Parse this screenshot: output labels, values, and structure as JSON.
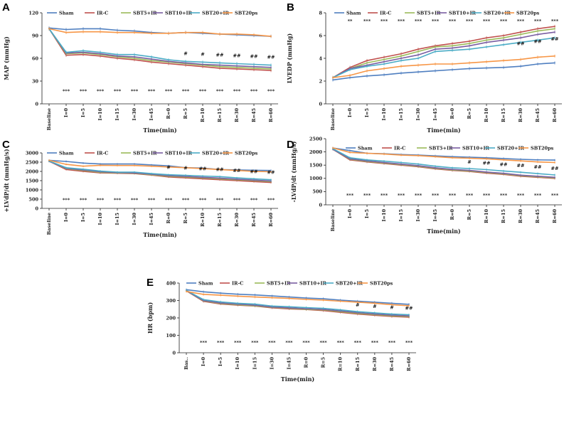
{
  "legend": [
    "Sham",
    "IR-C",
    "SBT5+IR",
    "SBT10+IR",
    "SBT20+IR",
    "SBT20ps"
  ],
  "colors": [
    "#4f7fc0",
    "#c0504d",
    "#9bbb59",
    "#7a5ea2",
    "#4bacc6",
    "#f79646"
  ],
  "xlabel": "Time(min)",
  "categories": [
    "Baseline",
    "I=0",
    "I=5",
    "I=10",
    "I=15",
    "I=30",
    "I=45",
    "R=0",
    "R=5",
    "R=10",
    "R=15",
    "R=30",
    "R=45",
    "R=60"
  ],
  "categories_E": [
    "Bas..",
    "I=0",
    "I=5",
    "I=10",
    "I=15",
    "I=30",
    "I=45",
    "R=0",
    "R=5",
    "R=10",
    "R=15",
    "R=30",
    "R=45",
    "R=60"
  ],
  "chart_data": [
    {
      "panel": "A",
      "type": "line",
      "ylabel": "MAP (mmHg)",
      "ylim": [
        0,
        120
      ],
      "yticks": [
        0,
        30,
        60,
        90,
        120
      ],
      "series": [
        {
          "name": "Sham",
          "values": [
            100,
            98,
            99,
            99,
            97,
            96,
            94,
            93,
            94,
            93,
            92,
            91,
            90,
            89
          ]
        },
        {
          "name": "IR-C",
          "values": [
            99,
            64,
            65,
            63,
            60,
            58,
            55,
            53,
            51,
            49,
            47,
            46,
            45,
            44
          ]
        },
        {
          "name": "SBT5+IR",
          "values": [
            99,
            66,
            67,
            65,
            62,
            60,
            57,
            55,
            53,
            51,
            49,
            48,
            47,
            46
          ]
        },
        {
          "name": "SBT10+IR",
          "values": [
            99,
            67,
            68,
            66,
            63,
            62,
            59,
            56,
            54,
            52,
            51,
            50,
            49,
            48
          ]
        },
        {
          "name": "SBT20+IR",
          "values": [
            99,
            68,
            70,
            68,
            65,
            65,
            62,
            58,
            56,
            55,
            54,
            53,
            52,
            51
          ]
        },
        {
          "name": "SBT20ps",
          "values": [
            99,
            94,
            95,
            95,
            94,
            94,
            93,
            93,
            94,
            94,
            92,
            92,
            91,
            89
          ]
        }
      ],
      "sig_top": [
        "",
        "",
        "",
        "",
        "",
        "",
        "",
        "",
        "#",
        "#",
        "##",
        "##",
        "##",
        "##"
      ],
      "sig_bottom": [
        "",
        "***",
        "***",
        "***",
        "***",
        "***",
        "***",
        "***",
        "***",
        "***",
        "***",
        "***",
        "***",
        "***"
      ]
    },
    {
      "panel": "B",
      "type": "line",
      "ylabel": "LVEDP (mmHg)",
      "ylim": [
        0,
        8
      ],
      "yticks": [
        0,
        2,
        4,
        6,
        8
      ],
      "series": [
        {
          "name": "Sham",
          "values": [
            2.1,
            2.3,
            2.45,
            2.55,
            2.7,
            2.8,
            2.9,
            3.0,
            3.1,
            3.15,
            3.2,
            3.3,
            3.5,
            3.6
          ]
        },
        {
          "name": "IR-C",
          "values": [
            2.3,
            3.2,
            3.8,
            4.1,
            4.4,
            4.8,
            5.1,
            5.3,
            5.5,
            5.8,
            6.0,
            6.3,
            6.6,
            6.8
          ]
        },
        {
          "name": "SBT5+IR",
          "values": [
            2.3,
            3.1,
            3.6,
            3.9,
            4.2,
            4.6,
            5.0,
            5.1,
            5.3,
            5.6,
            5.8,
            6.1,
            6.4,
            6.6
          ]
        },
        {
          "name": "SBT10+IR",
          "values": [
            2.3,
            3.1,
            3.4,
            3.7,
            4.0,
            4.3,
            4.8,
            4.9,
            5.1,
            5.4,
            5.6,
            5.8,
            6.1,
            6.3
          ]
        },
        {
          "name": "SBT20+IR",
          "values": [
            2.3,
            3.0,
            3.3,
            3.5,
            3.8,
            4.0,
            4.6,
            4.7,
            4.8,
            5.0,
            5.2,
            5.4,
            5.6,
            5.8
          ]
        },
        {
          "name": "SBT20ps",
          "values": [
            2.3,
            2.5,
            2.9,
            3.1,
            3.3,
            3.4,
            3.5,
            3.5,
            3.6,
            3.7,
            3.8,
            3.9,
            4.1,
            4.2
          ]
        }
      ],
      "sig_top": [
        "",
        "**",
        "***",
        "***",
        "***",
        "***",
        "***",
        "***",
        "***",
        "***",
        "***",
        "***",
        "***",
        "***"
      ],
      "sig_bottom": [
        "",
        "",
        "",
        "",
        "",
        "",
        "",
        "",
        "",
        "",
        "",
        "##",
        "##",
        "##"
      ]
    },
    {
      "panel": "C",
      "type": "line",
      "ylabel": "+LVdP/dt (mmHg/s)",
      "ylim": [
        0,
        3000
      ],
      "yticks": [
        0,
        500,
        1000,
        1500,
        2000,
        2500,
        3000
      ],
      "series": [
        {
          "name": "Sham",
          "values": [
            2600,
            2540,
            2450,
            2400,
            2400,
            2400,
            2350,
            2300,
            2200,
            2180,
            2100,
            2080,
            2060,
            2050
          ]
        },
        {
          "name": "IR-C",
          "values": [
            2550,
            2100,
            2000,
            1920,
            1900,
            1880,
            1800,
            1700,
            1650,
            1600,
            1550,
            1500,
            1450,
            1400
          ]
        },
        {
          "name": "SBT5+IR",
          "values": [
            2550,
            2150,
            2050,
            1950,
            1920,
            1900,
            1820,
            1740,
            1700,
            1650,
            1600,
            1550,
            1500,
            1450
          ]
        },
        {
          "name": "SBT10+IR",
          "values": [
            2550,
            2170,
            2080,
            1980,
            1940,
            1920,
            1850,
            1770,
            1730,
            1680,
            1640,
            1580,
            1530,
            1480
          ]
        },
        {
          "name": "SBT20+IR",
          "values": [
            2560,
            2200,
            2120,
            2020,
            1960,
            1960,
            1880,
            1820,
            1790,
            1750,
            1720,
            1650,
            1600,
            1550
          ]
        },
        {
          "name": "SBT20ps",
          "values": [
            2600,
            2380,
            2280,
            2330,
            2320,
            2320,
            2280,
            2240,
            2200,
            2150,
            2100,
            2050,
            2000,
            1980
          ]
        }
      ],
      "sig_top": [
        "",
        "",
        "",
        "",
        "",
        "",
        "",
        "#",
        "#",
        "##",
        "##",
        "##",
        "##",
        "##"
      ],
      "sig_bottom": [
        "",
        "***",
        "***",
        "***",
        "***",
        "***",
        "***",
        "***",
        "***",
        "***",
        "***",
        "***",
        "***",
        "***"
      ]
    },
    {
      "panel": "D",
      "type": "line",
      "ylabel": "-LVdP/dt (mmHg/s)",
      "ylim": [
        0,
        2500
      ],
      "yticks": [
        0,
        500,
        1000,
        1500,
        2000,
        2500
      ],
      "series": [
        {
          "name": "Sham",
          "values": [
            2150,
            2050,
            1950,
            1930,
            1900,
            1880,
            1850,
            1820,
            1800,
            1780,
            1750,
            1720,
            1700,
            1690
          ]
        },
        {
          "name": "IR-C",
          "values": [
            2100,
            1700,
            1620,
            1560,
            1500,
            1440,
            1360,
            1300,
            1260,
            1200,
            1150,
            1080,
            1040,
            1000
          ]
        },
        {
          "name": "SBT5+IR",
          "values": [
            2100,
            1720,
            1640,
            1580,
            1520,
            1460,
            1380,
            1320,
            1280,
            1220,
            1170,
            1100,
            1060,
            1020
          ]
        },
        {
          "name": "SBT10+IR",
          "values": [
            2100,
            1740,
            1660,
            1600,
            1540,
            1480,
            1400,
            1340,
            1300,
            1240,
            1190,
            1120,
            1080,
            1040
          ]
        },
        {
          "name": "SBT20+IR",
          "values": [
            2120,
            1780,
            1700,
            1650,
            1600,
            1540,
            1460,
            1400,
            1370,
            1330,
            1280,
            1230,
            1180,
            1130
          ]
        },
        {
          "name": "SBT20ps",
          "values": [
            2150,
            1980,
            1950,
            1920,
            1880,
            1860,
            1820,
            1780,
            1760,
            1740,
            1700,
            1660,
            1620,
            1600
          ]
        }
      ],
      "sig_top": [
        "",
        "",
        "",
        "",
        "",
        "",
        "",
        "",
        "#",
        "##",
        "##",
        "##",
        "##",
        "##"
      ],
      "sig_bottom": [
        "",
        "***",
        "***",
        "***",
        "***",
        "***",
        "***",
        "***",
        "***",
        "***",
        "***",
        "***",
        "***",
        "***"
      ]
    },
    {
      "panel": "E",
      "type": "line",
      "ylabel": "HR (bpm)",
      "ylim": [
        0,
        400
      ],
      "yticks": [
        0,
        100,
        200,
        300,
        400
      ],
      "series": [
        {
          "name": "Sham",
          "values": [
            362,
            350,
            342,
            336,
            332,
            326,
            320,
            314,
            310,
            302,
            296,
            290,
            284,
            278
          ]
        },
        {
          "name": "IR-C",
          "values": [
            355,
            295,
            280,
            273,
            268,
            258,
            252,
            248,
            242,
            232,
            222,
            215,
            208,
            204
          ]
        },
        {
          "name": "SBT5+IR",
          "values": [
            356,
            298,
            283,
            276,
            270,
            261,
            255,
            250,
            246,
            236,
            226,
            219,
            212,
            208
          ]
        },
        {
          "name": "SBT10+IR",
          "values": [
            356,
            300,
            286,
            279,
            273,
            263,
            258,
            253,
            249,
            240,
            230,
            223,
            216,
            212
          ]
        },
        {
          "name": "SBT20+IR",
          "values": [
            358,
            305,
            292,
            284,
            279,
            268,
            264,
            259,
            255,
            246,
            236,
            229,
            222,
            218
          ]
        },
        {
          "name": "SBT20ps",
          "values": [
            352,
            335,
            330,
            325,
            320,
            316,
            312,
            306,
            302,
            296,
            290,
            284,
            276,
            270
          ]
        }
      ],
      "sig_top": [
        "",
        "",
        "",
        "",
        "",
        "",
        "",
        "",
        "",
        "",
        "#",
        "#",
        "#",
        "##"
      ],
      "sig_bottom": [
        "",
        "***",
        "***",
        "***",
        "***",
        "***",
        "***",
        "***",
        "***",
        "***",
        "***",
        "***",
        "***",
        "***"
      ]
    }
  ]
}
